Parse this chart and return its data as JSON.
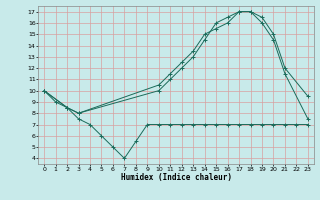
{
  "title": "",
  "xlabel": "Humidex (Indice chaleur)",
  "bg_color": "#c8eaea",
  "grid_color": "#d8a0a0",
  "line_color": "#1a6b5a",
  "xlim": [
    -0.5,
    23.5
  ],
  "ylim": [
    3.5,
    17.5
  ],
  "xticks": [
    0,
    1,
    2,
    3,
    4,
    5,
    6,
    7,
    8,
    9,
    10,
    11,
    12,
    13,
    14,
    15,
    16,
    17,
    18,
    19,
    20,
    21,
    22,
    23
  ],
  "yticks": [
    4,
    5,
    6,
    7,
    8,
    9,
    10,
    11,
    12,
    13,
    14,
    15,
    16,
    17
  ],
  "line1_x": [
    0,
    1,
    2,
    3,
    4,
    5,
    6,
    7,
    8,
    9,
    10,
    11,
    12,
    13,
    14,
    15,
    16,
    17,
    18,
    19,
    20,
    21,
    22,
    23
  ],
  "line1_y": [
    10,
    9,
    8.5,
    7.5,
    7,
    6,
    5,
    4,
    5.5,
    7,
    7,
    7,
    7,
    7,
    7,
    7,
    7,
    7,
    7,
    7,
    7,
    7,
    7,
    7
  ],
  "line2_x": [
    0,
    2,
    3,
    10,
    11,
    12,
    13,
    14,
    15,
    16,
    17,
    18,
    19,
    20,
    21,
    23
  ],
  "line2_y": [
    10,
    8.5,
    8,
    10.5,
    11.5,
    12.5,
    13.5,
    15,
    15.5,
    16,
    17,
    17,
    16.5,
    15,
    12,
    9.5
  ],
  "line3_x": [
    0,
    2,
    3,
    10,
    11,
    12,
    13,
    14,
    15,
    16,
    17,
    18,
    19,
    20,
    21,
    23
  ],
  "line3_y": [
    10,
    8.5,
    8,
    10,
    11,
    12,
    13,
    14.5,
    16,
    16.5,
    17,
    17,
    16,
    14.5,
    11.5,
    7.5
  ]
}
